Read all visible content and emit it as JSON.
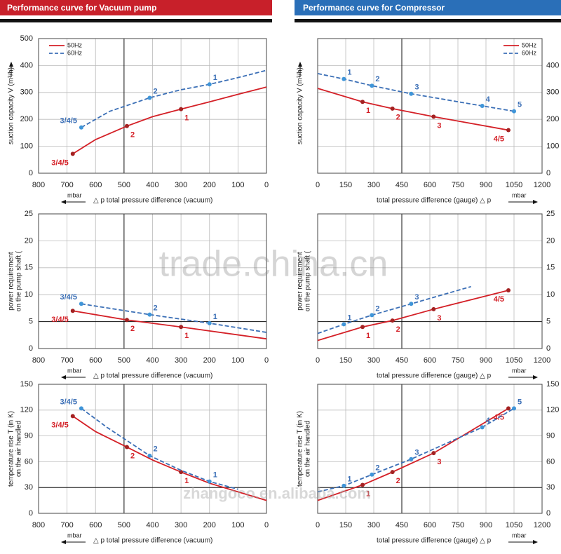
{
  "headers": [
    "Performance curve for Vacuum pump",
    "Performance curve for Compressor"
  ],
  "watermarks": [
    "trade.china.cn",
    "zhangoco.en.alibaba.com"
  ],
  "chart_data": [
    {
      "type": "line",
      "ylabel": [
        "suction capacity V (m³/h)"
      ],
      "xlabel": "△ p total pressure difference (vacuum)",
      "xunit": "mbar",
      "xlim": [
        800,
        0
      ],
      "xticks": [
        800,
        700,
        600,
        500,
        400,
        300,
        200,
        100,
        0
      ],
      "ylim": [
        0,
        500
      ],
      "yticks": [
        0,
        100,
        200,
        300,
        400,
        500
      ],
      "grid": true,
      "x_ref": 500,
      "legend": "upper left",
      "series": [
        {
          "name": "50Hz",
          "color": "#d42027",
          "marker_color": "#a32222",
          "dash": false,
          "x": [
            680,
            600,
            490,
            400,
            300,
            200,
            100,
            0
          ],
          "values": [
            72,
            125,
            175,
            210,
            238,
            265,
            293,
            320
          ],
          "point_labels": [
            "3/4/5",
            null,
            "2",
            null,
            "1",
            null,
            null,
            null
          ]
        },
        {
          "name": "60Hz",
          "color": "#3b6fb6",
          "marker_color": "#3f95d8",
          "dash": true,
          "x": [
            650,
            550,
            410,
            300,
            200,
            100,
            0
          ],
          "values": [
            170,
            230,
            280,
            310,
            330,
            355,
            382
          ],
          "point_labels": [
            "3/4/5",
            null,
            "2",
            null,
            "1",
            null,
            null
          ]
        }
      ]
    },
    {
      "type": "line",
      "ylabel": [
        "suction capacity V (m³/h)"
      ],
      "xlabel": "total pressure difference (gauge)  △ p",
      "xunit": "mbar",
      "xlim": [
        0,
        1200
      ],
      "xticks": [
        0,
        150,
        300,
        450,
        600,
        750,
        900,
        1050,
        1200
      ],
      "ylim": [
        0,
        500
      ],
      "yticks": [
        0,
        100,
        200,
        300,
        400
      ],
      "grid": true,
      "x_ref": 450,
      "legend": "upper right",
      "series": [
        {
          "name": "50Hz",
          "color": "#d42027",
          "marker_color": "#a32222",
          "dash": false,
          "x": [
            0,
            240,
            400,
            620,
            1020
          ],
          "values": [
            315,
            265,
            240,
            210,
            160
          ],
          "point_labels": [
            null,
            "1",
            "2",
            "3",
            "4/5"
          ]
        },
        {
          "name": "60Hz",
          "color": "#3b6fb6",
          "marker_color": "#3f95d8",
          "dash": true,
          "x": [
            0,
            140,
            290,
            500,
            880,
            1050
          ],
          "values": [
            370,
            350,
            325,
            295,
            250,
            230
          ],
          "point_labels": [
            null,
            "1",
            "2",
            "3",
            "4",
            "5"
          ]
        }
      ]
    },
    {
      "type": "line",
      "ylabel": [
        "power requirement",
        "on the pump shaft ("
      ],
      "xlabel": "△ p total pressure difference (vacuum)",
      "xunit": "mbar",
      "xlim": [
        800,
        0
      ],
      "xticks": [
        800,
        700,
        600,
        500,
        400,
        300,
        200,
        100,
        0
      ],
      "ylim": [
        0,
        25
      ],
      "yticks": [
        0,
        5,
        10,
        15,
        20,
        25
      ],
      "grid": true,
      "x_ref": 500,
      "y_ref": 5,
      "series": [
        {
          "name": "50Hz",
          "color": "#d42027",
          "marker_color": "#a32222",
          "dash": false,
          "x": [
            680,
            490,
            300,
            0
          ],
          "values": [
            7,
            5.3,
            4,
            1.8
          ],
          "point_labels": [
            "3/4/5",
            "2",
            "1",
            null
          ]
        },
        {
          "name": "60Hz",
          "color": "#3b6fb6",
          "marker_color": "#3f95d8",
          "dash": true,
          "x": [
            650,
            410,
            200,
            0
          ],
          "values": [
            8.3,
            6.3,
            4.7,
            3
          ],
          "point_labels": [
            "3/4/5",
            "2",
            "1",
            null
          ]
        }
      ]
    },
    {
      "type": "line",
      "ylabel": [
        "power requirement",
        "on the pump shaft ("
      ],
      "xlabel": "total pressure difference (gauge)  △ p",
      "xunit": "mbar",
      "xlim": [
        0,
        1200
      ],
      "xticks": [
        0,
        150,
        300,
        450,
        600,
        750,
        900,
        1050,
        1200
      ],
      "ylim": [
        0,
        25
      ],
      "yticks": [
        0,
        5,
        10,
        15,
        20,
        25
      ],
      "grid": true,
      "x_ref": 450,
      "y_ref": 5,
      "series": [
        {
          "name": "50Hz",
          "color": "#d42027",
          "marker_color": "#a32222",
          "dash": false,
          "x": [
            0,
            240,
            400,
            620,
            1020
          ],
          "values": [
            1.5,
            4,
            5.2,
            7.3,
            10.8
          ],
          "point_labels": [
            null,
            "1",
            "2",
            "3",
            "4/5"
          ]
        },
        {
          "name": "60Hz",
          "color": "#3b6fb6",
          "marker_color": "#3f95d8",
          "dash": true,
          "x": [
            0,
            140,
            290,
            500,
            820
          ],
          "values": [
            2.8,
            4.5,
            6.2,
            8.3,
            11.5
          ],
          "point_labels": [
            null,
            "1",
            "2",
            "3",
            null
          ]
        }
      ]
    },
    {
      "type": "line",
      "ylabel": [
        "temperature rise T (in K)",
        "on the air handled"
      ],
      "xlabel": "△ p total pressure difference (vacuum)",
      "xunit": "mbar",
      "xlim": [
        800,
        0
      ],
      "xticks": [
        800,
        700,
        600,
        500,
        400,
        300,
        200,
        100,
        0
      ],
      "ylim": [
        0,
        150
      ],
      "yticks": [
        0,
        30,
        60,
        90,
        120,
        150
      ],
      "grid": true,
      "x_ref": 500,
      "y_ref": 30,
      "series": [
        {
          "name": "50Hz",
          "color": "#d42027",
          "marker_color": "#a32222",
          "dash": false,
          "x": [
            680,
            600,
            490,
            400,
            300,
            200,
            100,
            0
          ],
          "values": [
            113,
            95,
            77,
            62,
            48,
            35,
            25,
            15
          ],
          "point_labels": [
            "3/4/5",
            null,
            "2",
            null,
            "1",
            null,
            null,
            null
          ]
        },
        {
          "name": "60Hz",
          "color": "#3b6fb6",
          "marker_color": "#3f95d8",
          "dash": true,
          "x": [
            650,
            560,
            410,
            300,
            200,
            100
          ],
          "values": [
            122,
            100,
            67,
            50,
            37,
            28
          ],
          "point_labels": [
            "3/4/5",
            null,
            "2",
            null,
            "1",
            null
          ]
        }
      ]
    },
    {
      "type": "line",
      "ylabel": [
        "temperature rise T (in K)",
        "on the air handled"
      ],
      "xlabel": "total pressure difference (gauge)  △ p",
      "xunit": "mbar",
      "xlim": [
        0,
        1200
      ],
      "xticks": [
        0,
        150,
        300,
        450,
        600,
        750,
        900,
        1050,
        1200
      ],
      "ylim": [
        0,
        150
      ],
      "yticks": [
        0,
        30,
        60,
        90,
        120,
        150
      ],
      "grid": true,
      "x_ref": 450,
      "y_ref": 30,
      "series": [
        {
          "name": "50Hz",
          "color": "#d42027",
          "marker_color": "#a32222",
          "dash": false,
          "x": [
            0,
            240,
            400,
            620,
            1020
          ],
          "values": [
            15,
            33,
            48,
            70,
            122
          ],
          "point_labels": [
            null,
            "1",
            "2",
            "3",
            "4/5"
          ]
        },
        {
          "name": "60Hz",
          "color": "#3b6fb6",
          "marker_color": "#3f95d8",
          "dash": true,
          "x": [
            0,
            140,
            290,
            500,
            880,
            1050
          ],
          "values": [
            25,
            32,
            45,
            63,
            100,
            122
          ],
          "point_labels": [
            null,
            "1",
            "2",
            "3",
            "4",
            "5"
          ]
        }
      ]
    }
  ]
}
